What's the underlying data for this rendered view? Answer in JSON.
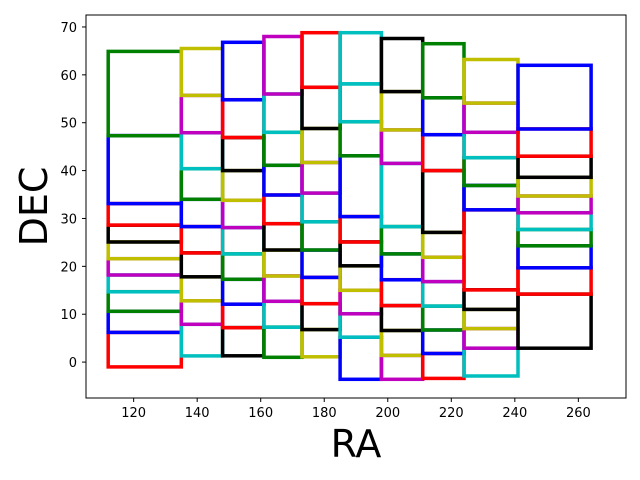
{
  "chart_data": {
    "type": "rectangles",
    "xlabel": "RA",
    "ylabel": "DEC",
    "xlim": [
      105,
      275
    ],
    "ylim": [
      -7.5,
      72.5
    ],
    "xticks": [
      120,
      140,
      160,
      180,
      200,
      220,
      240,
      260
    ],
    "yticks": [
      0,
      10,
      20,
      30,
      40,
      50,
      60,
      70
    ],
    "grid": false,
    "colors": {
      "r": "#ff0000",
      "g": "#008000",
      "b": "#0000ff",
      "c": "#00bfbf",
      "m": "#bf00bf",
      "y": "#bfbf00",
      "k": "#000000"
    },
    "columns": [
      {
        "ra": [
          112.0,
          135.0
        ],
        "fields": [
          {
            "dec": [
              -1.0,
              6.2
            ],
            "color": "r"
          },
          {
            "dec": [
              6.2,
              10.6
            ],
            "color": "b"
          },
          {
            "dec": [
              10.6,
              14.7
            ],
            "color": "g"
          },
          {
            "dec": [
              14.7,
              18.2
            ],
            "color": "c"
          },
          {
            "dec": [
              18.2,
              21.6
            ],
            "color": "m"
          },
          {
            "dec": [
              21.6,
              25.1
            ],
            "color": "y"
          },
          {
            "dec": [
              25.1,
              28.6
            ],
            "color": "k"
          },
          {
            "dec": [
              28.6,
              33.1
            ],
            "color": "r"
          },
          {
            "dec": [
              33.1,
              47.3
            ],
            "color": "b"
          },
          {
            "dec": [
              47.3,
              64.9
            ],
            "color": "g"
          }
        ]
      },
      {
        "ra": [
          135.0,
          148.0
        ],
        "fields": [
          {
            "dec": [
              1.3,
              7.9
            ],
            "color": "c"
          },
          {
            "dec": [
              7.9,
              12.8
            ],
            "color": "m"
          },
          {
            "dec": [
              12.8,
              17.8
            ],
            "color": "y"
          },
          {
            "dec": [
              17.8,
              22.8
            ],
            "color": "k"
          },
          {
            "dec": [
              22.8,
              28.3
            ],
            "color": "r"
          },
          {
            "dec": [
              28.3,
              34.0
            ],
            "color": "b"
          },
          {
            "dec": [
              34.0,
              40.4
            ],
            "color": "g"
          },
          {
            "dec": [
              40.4,
              47.9
            ],
            "color": "c"
          },
          {
            "dec": [
              47.9,
              55.7
            ],
            "color": "m"
          },
          {
            "dec": [
              55.7,
              65.5
            ],
            "color": "y"
          }
        ]
      },
      {
        "ra": [
          148.0,
          161.0
        ],
        "fields": [
          {
            "dec": [
              1.3,
              7.2
            ],
            "color": "k"
          },
          {
            "dec": [
              7.2,
              12.1
            ],
            "color": "r"
          },
          {
            "dec": [
              12.1,
              17.3
            ],
            "color": "b"
          },
          {
            "dec": [
              17.3,
              22.6
            ],
            "color": "g"
          },
          {
            "dec": [
              22.6,
              28.1
            ],
            "color": "c"
          },
          {
            "dec": [
              28.1,
              33.8
            ],
            "color": "m"
          },
          {
            "dec": [
              33.8,
              40.0
            ],
            "color": "y"
          },
          {
            "dec": [
              40.0,
              46.9
            ],
            "color": "k"
          },
          {
            "dec": [
              46.9,
              54.8
            ],
            "color": "r"
          },
          {
            "dec": [
              54.8,
              66.8
            ],
            "color": "b"
          }
        ]
      },
      {
        "ra": [
          161.0,
          173.0
        ],
        "fields": [
          {
            "dec": [
              1.0,
              7.3
            ],
            "color": "g"
          },
          {
            "dec": [
              7.3,
              12.7
            ],
            "color": "c"
          },
          {
            "dec": [
              12.7,
              18.0
            ],
            "color": "m"
          },
          {
            "dec": [
              18.0,
              23.4
            ],
            "color": "y"
          },
          {
            "dec": [
              23.4,
              28.9
            ],
            "color": "k"
          },
          {
            "dec": [
              28.9,
              34.9
            ],
            "color": "r"
          },
          {
            "dec": [
              34.9,
              41.1
            ],
            "color": "b"
          },
          {
            "dec": [
              41.1,
              48.0
            ],
            "color": "g"
          },
          {
            "dec": [
              48.0,
              56.0
            ],
            "color": "c"
          },
          {
            "dec": [
              56.0,
              68.0
            ],
            "color": "m"
          }
        ]
      },
      {
        "ra": [
          173.0,
          185.0
        ],
        "fields": [
          {
            "dec": [
              1.1,
              6.8
            ],
            "color": "y"
          },
          {
            "dec": [
              6.8,
              12.2
            ],
            "color": "k"
          },
          {
            "dec": [
              12.2,
              17.7
            ],
            "color": "r"
          },
          {
            "dec": [
              17.7,
              23.4
            ],
            "color": "b"
          },
          {
            "dec": [
              23.4,
              29.3
            ],
            "color": "g"
          },
          {
            "dec": [
              29.3,
              35.3
            ],
            "color": "c"
          },
          {
            "dec": [
              35.3,
              41.7
            ],
            "color": "m"
          },
          {
            "dec": [
              41.7,
              48.8
            ],
            "color": "y"
          },
          {
            "dec": [
              48.8,
              57.4
            ],
            "color": "k"
          },
          {
            "dec": [
              57.4,
              68.8
            ],
            "color": "r"
          }
        ]
      },
      {
        "ra": [
          185.0,
          198.0
        ],
        "fields": [
          {
            "dec": [
              -3.6,
              5.2
            ],
            "color": "b"
          },
          {
            "dec": [
              5.2,
              10.1
            ],
            "color": "c"
          },
          {
            "dec": [
              10.1,
              15.0
            ],
            "color": "m"
          },
          {
            "dec": [
              15.0,
              20.1
            ],
            "color": "y"
          },
          {
            "dec": [
              20.1,
              25.1
            ],
            "color": "k"
          },
          {
            "dec": [
              25.1,
              30.4
            ],
            "color": "r"
          },
          {
            "dec": [
              30.4,
              43.1
            ],
            "color": "b"
          },
          {
            "dec": [
              43.1,
              50.2
            ],
            "color": "g"
          },
          {
            "dec": [
              50.2,
              58.1
            ],
            "color": "c"
          },
          {
            "dec": [
              58.1,
              68.8
            ],
            "color": "c"
          }
        ]
      },
      {
        "ra": [
          198.0,
          211.0
        ],
        "fields": [
          {
            "dec": [
              -3.6,
              1.4
            ],
            "color": "m"
          },
          {
            "dec": [
              1.4,
              6.6
            ],
            "color": "y"
          },
          {
            "dec": [
              6.6,
              11.8
            ],
            "color": "k"
          },
          {
            "dec": [
              11.8,
              17.2
            ],
            "color": "r"
          },
          {
            "dec": [
              17.2,
              22.6
            ],
            "color": "b"
          },
          {
            "dec": [
              22.6,
              28.3
            ],
            "color": "g"
          },
          {
            "dec": [
              28.3,
              41.5
            ],
            "color": "c"
          },
          {
            "dec": [
              41.5,
              48.5
            ],
            "color": "m"
          },
          {
            "dec": [
              48.5,
              56.5
            ],
            "color": "y"
          },
          {
            "dec": [
              56.5,
              67.6
            ],
            "color": "k"
          }
        ]
      },
      {
        "ra": [
          211.0,
          224.0
        ],
        "fields": [
          {
            "dec": [
              -3.4,
              1.8
            ],
            "color": "r"
          },
          {
            "dec": [
              1.8,
              6.7
            ],
            "color": "b"
          },
          {
            "dec": [
              6.7,
              11.7
            ],
            "color": "g"
          },
          {
            "dec": [
              11.7,
              16.8
            ],
            "color": "c"
          },
          {
            "dec": [
              16.8,
              21.9
            ],
            "color": "m"
          },
          {
            "dec": [
              21.9,
              27.1
            ],
            "color": "y"
          },
          {
            "dec": [
              27.1,
              40.0
            ],
            "color": "k"
          },
          {
            "dec": [
              40.0,
              47.5
            ],
            "color": "r"
          },
          {
            "dec": [
              47.5,
              55.2
            ],
            "color": "b"
          },
          {
            "dec": [
              55.2,
              66.5
            ],
            "color": "g"
          }
        ]
      },
      {
        "ra": [
          224.0,
          241.0
        ],
        "fields": [
          {
            "dec": [
              -2.9,
              2.9
            ],
            "color": "c"
          },
          {
            "dec": [
              2.9,
              7.0
            ],
            "color": "m"
          },
          {
            "dec": [
              7.0,
              11.0
            ],
            "color": "y"
          },
          {
            "dec": [
              11.0,
              15.1
            ],
            "color": "k"
          },
          {
            "dec": [
              15.1,
              31.8
            ],
            "color": "r"
          },
          {
            "dec": [
              31.8,
              36.9
            ],
            "color": "b"
          },
          {
            "dec": [
              36.9,
              42.7
            ],
            "color": "g"
          },
          {
            "dec": [
              42.7,
              48.0
            ],
            "color": "c"
          },
          {
            "dec": [
              48.0,
              54.1
            ],
            "color": "m"
          },
          {
            "dec": [
              54.1,
              63.2
            ],
            "color": "y"
          }
        ]
      },
      {
        "ra": [
          241.0,
          264.0
        ],
        "fields": [
          {
            "dec": [
              2.9,
              14.2
            ],
            "color": "k"
          },
          {
            "dec": [
              14.2,
              19.7
            ],
            "color": "r"
          },
          {
            "dec": [
              19.7,
              24.3
            ],
            "color": "b"
          },
          {
            "dec": [
              24.3,
              27.7
            ],
            "color": "g"
          },
          {
            "dec": [
              27.7,
              31.2
            ],
            "color": "c"
          },
          {
            "dec": [
              31.2,
              34.7
            ],
            "color": "m"
          },
          {
            "dec": [
              34.7,
              38.6
            ],
            "color": "y"
          },
          {
            "dec": [
              38.6,
              43.0
            ],
            "color": "k"
          },
          {
            "dec": [
              43.0,
              48.7
            ],
            "color": "r"
          },
          {
            "dec": [
              48.7,
              62.0
            ],
            "color": "b"
          }
        ]
      }
    ]
  }
}
